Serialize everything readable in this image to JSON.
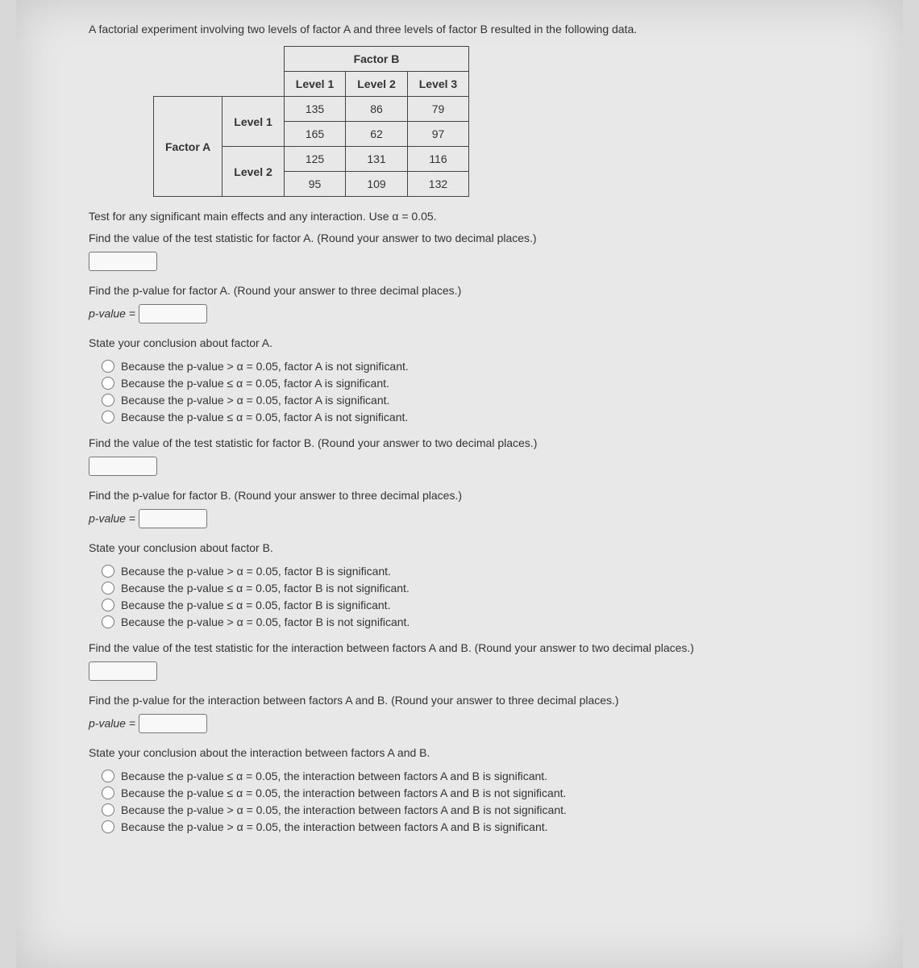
{
  "intro": "A factorial experiment involving two levels of factor A and three levels of factor B resulted in the following data.",
  "table": {
    "factorB": "Factor B",
    "factorA": "Factor A",
    "cols": [
      "Level 1",
      "Level 2",
      "Level 3"
    ],
    "rowLabels": [
      "Level 1",
      "Level 2"
    ],
    "rows": [
      [
        "135",
        "86",
        "79"
      ],
      [
        "165",
        "62",
        "97"
      ],
      [
        "125",
        "131",
        "116"
      ],
      [
        "95",
        "109",
        "132"
      ]
    ]
  },
  "testLine": "Test for any significant main effects and any interaction. Use α = 0.05.",
  "sections": {
    "A": {
      "statPrompt": "Find the value of the test statistic for factor A. (Round your answer to two decimal places.)",
      "pvalPrompt": "Find the p-value for factor A. (Round your answer to three decimal places.)",
      "pvalLabel": "p-value =",
      "conclPrompt": "State your conclusion about factor A.",
      "options": [
        "Because the p-value > α = 0.05, factor A is not significant.",
        "Because the p-value ≤ α = 0.05, factor A is significant.",
        "Because the p-value > α = 0.05, factor A is significant.",
        "Because the p-value ≤ α = 0.05, factor A is not significant."
      ]
    },
    "B": {
      "statPrompt": "Find the value of the test statistic for factor B. (Round your answer to two decimal places.)",
      "pvalPrompt": "Find the p-value for factor B. (Round your answer to three decimal places.)",
      "pvalLabel": "p-value =",
      "conclPrompt": "State your conclusion about factor B.",
      "options": [
        "Because the p-value > α = 0.05, factor B is significant.",
        "Because the p-value ≤ α = 0.05, factor B is not significant.",
        "Because the p-value ≤ α = 0.05, factor B is significant.",
        "Because the p-value > α = 0.05, factor B is not significant."
      ]
    },
    "AB": {
      "statPrompt": "Find the value of the test statistic for the interaction between factors A and B. (Round your answer to two decimal places.)",
      "pvalPrompt": "Find the p-value for the interaction between factors A and B. (Round your answer to three decimal places.)",
      "pvalLabel": "p-value =",
      "conclPrompt": "State your conclusion about the interaction between factors A and B.",
      "options": [
        "Because the p-value ≤ α = 0.05, the interaction between factors A and B is significant.",
        "Because the p-value ≤ α = 0.05, the interaction between factors A and B is not significant.",
        "Because the p-value > α = 0.05, the interaction between factors A and B is not significant.",
        "Because the p-value > α = 0.05, the interaction between factors A and B is significant."
      ]
    }
  }
}
